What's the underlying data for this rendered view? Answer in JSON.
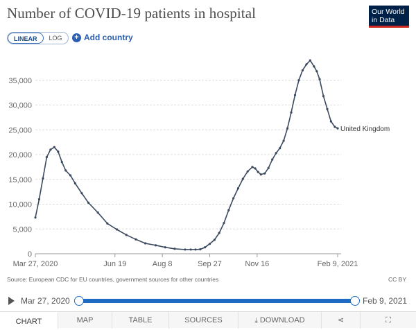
{
  "header": {
    "title": "Number of COVID-19 patients in hospital",
    "logo_line1": "Our World",
    "logo_line2": "in Data"
  },
  "controls": {
    "scale_options": [
      "LINEAR",
      "LOG"
    ],
    "scale_selected": "LINEAR",
    "add_country_label": "Add country"
  },
  "chart_data": {
    "type": "line",
    "title": "Number of COVID-19 patients in hospital",
    "xlabel": "",
    "ylabel": "",
    "ylim": [
      0,
      40000
    ],
    "y_ticks": [
      0,
      5000,
      10000,
      15000,
      20000,
      25000,
      30000,
      35000
    ],
    "y_tick_labels": [
      "0",
      "5,000",
      "10,000",
      "15,000",
      "20,000",
      "25,000",
      "30,000",
      "35,000"
    ],
    "x_tick_labels": [
      "Mar 27, 2020",
      "Jun 19",
      "Aug 8",
      "Sep 27",
      "Nov 16",
      "Feb 9, 2021"
    ],
    "x_tick_dates": [
      "2020-03-27",
      "2020-06-19",
      "2020-08-08",
      "2020-09-27",
      "2020-11-16",
      "2021-02-09"
    ],
    "grid": true,
    "series": [
      {
        "name": "United Kingdom",
        "color": "#3b4a5e",
        "x": [
          "2020-03-27",
          "2020-03-31",
          "2020-04-04",
          "2020-04-08",
          "2020-04-12",
          "2020-04-16",
          "2020-04-20",
          "2020-04-24",
          "2020-04-28",
          "2020-05-03",
          "2020-05-08",
          "2020-05-15",
          "2020-05-22",
          "2020-06-01",
          "2020-06-11",
          "2020-06-21",
          "2020-07-01",
          "2020-07-11",
          "2020-07-21",
          "2020-08-01",
          "2020-08-11",
          "2020-08-21",
          "2020-09-01",
          "2020-09-07",
          "2020-09-12",
          "2020-09-17",
          "2020-09-22",
          "2020-09-27",
          "2020-10-02",
          "2020-10-07",
          "2020-10-12",
          "2020-10-17",
          "2020-10-22",
          "2020-10-27",
          "2020-11-01",
          "2020-11-06",
          "2020-11-11",
          "2020-11-14",
          "2020-11-17",
          "2020-11-20",
          "2020-11-24",
          "2020-11-28",
          "2020-12-02",
          "2020-12-06",
          "2020-12-10",
          "2020-12-14",
          "2020-12-18",
          "2020-12-22",
          "2020-12-26",
          "2020-12-30",
          "2021-01-03",
          "2021-01-07",
          "2021-01-11",
          "2021-01-15",
          "2021-01-18",
          "2021-01-21",
          "2021-01-25",
          "2021-01-29",
          "2021-02-02",
          "2021-02-06",
          "2021-02-09"
        ],
        "y": [
          7300,
          11000,
          15200,
          19500,
          21000,
          21500,
          20600,
          18500,
          16800,
          15800,
          14200,
          12200,
          10300,
          8300,
          6100,
          4900,
          3800,
          2900,
          2100,
          1700,
          1300,
          1000,
          850,
          850,
          850,
          900,
          1300,
          2000,
          2800,
          4200,
          6200,
          8800,
          11200,
          13200,
          15100,
          16600,
          17500,
          17200,
          16500,
          16000,
          16200,
          17300,
          19000,
          20300,
          21300,
          22800,
          25300,
          28500,
          32000,
          35000,
          37000,
          38200,
          39000,
          37800,
          36800,
          35200,
          31800,
          29200,
          26700,
          25600,
          25300
        ]
      }
    ],
    "series_label": "United Kingdom"
  },
  "footer": {
    "source": "Source: European CDC for EU countries, government sources for other countries",
    "license": "CC BY"
  },
  "timeline": {
    "start_label": "Mar 27, 2020",
    "end_label": "Feb 9, 2021"
  },
  "tabs": [
    {
      "label": "CHART",
      "active": true
    },
    {
      "label": "MAP",
      "active": false
    },
    {
      "label": "TABLE",
      "active": false
    },
    {
      "label": "SOURCES",
      "active": false
    },
    {
      "label": "DOWNLOAD",
      "active": false
    }
  ]
}
